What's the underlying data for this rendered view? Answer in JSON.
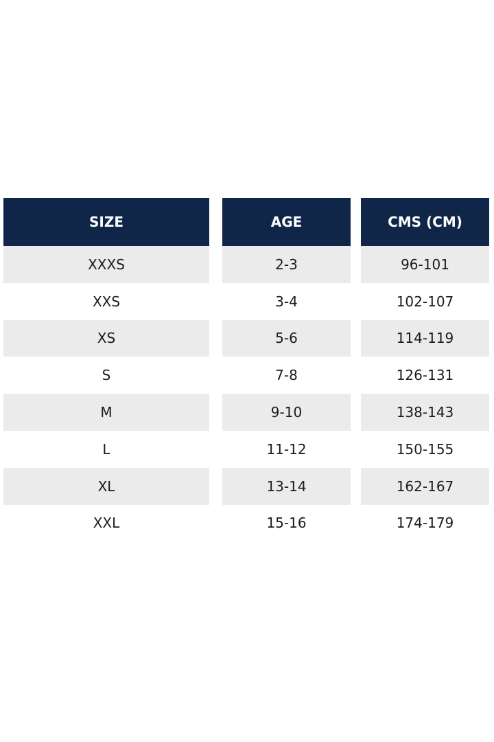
{
  "table": {
    "headers": [
      "SIZE",
      "AGE",
      "CMS (CM)"
    ],
    "rows": [
      [
        "XXXS",
        "2-3",
        "96-101"
      ],
      [
        "XXS",
        "3-4",
        "102-107"
      ],
      [
        "XS",
        "5-6",
        "114-119"
      ],
      [
        "S",
        "7-8",
        "126-131"
      ],
      [
        "M",
        "9-10",
        "138-143"
      ],
      [
        "L",
        "11-12",
        "150-155"
      ],
      [
        "XL",
        "13-14",
        "162-167"
      ],
      [
        "XXL",
        "15-16",
        "174-179"
      ]
    ]
  }
}
